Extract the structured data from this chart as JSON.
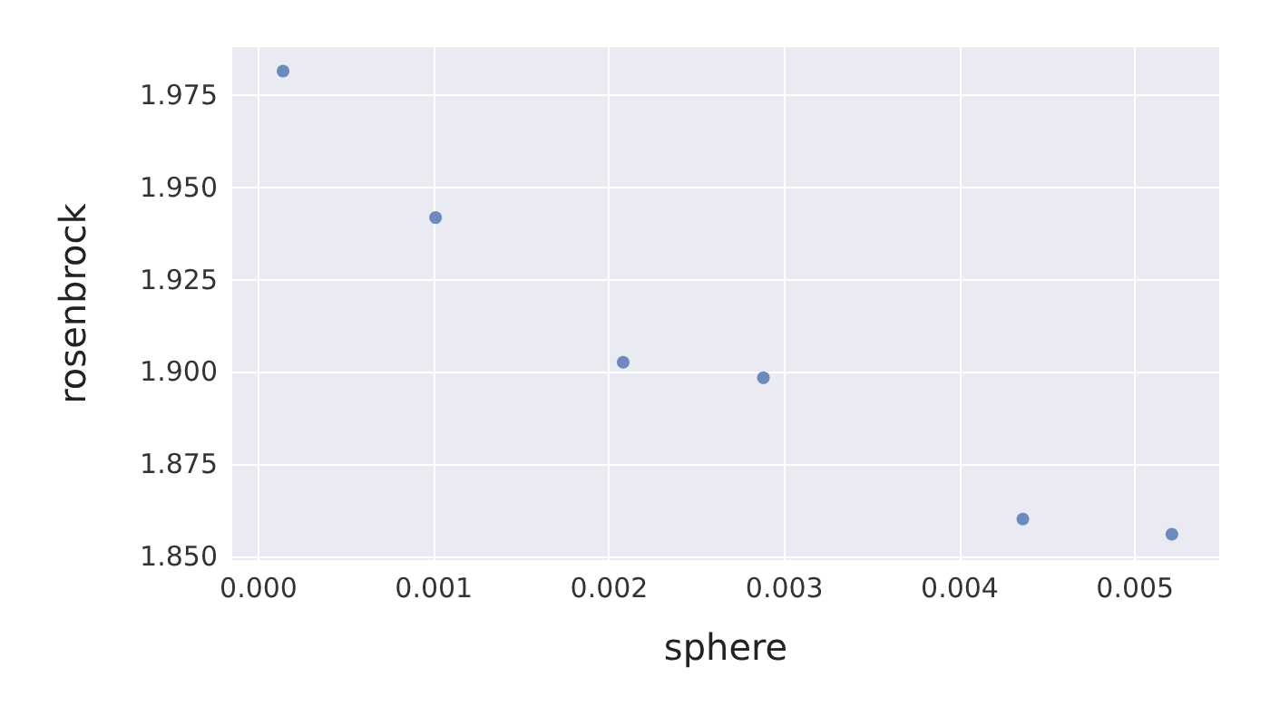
{
  "chart_data": {
    "type": "scatter",
    "xlabel": "sphere",
    "ylabel": "rosenbrock",
    "x": [
      0.00014,
      0.00101,
      0.00208,
      0.00288,
      0.00436,
      0.00521
    ],
    "series": [
      {
        "color": "#4c72b0",
        "values": [
          1.9815,
          1.9418,
          1.9026,
          1.8984,
          1.8601,
          1.856
        ]
      }
    ],
    "xlim": [
      -0.00015,
      0.00548
    ],
    "ylim": [
      1.849,
      1.988
    ],
    "xticks": [
      {
        "value": 0,
        "label": "0.000"
      },
      {
        "value": 0.001,
        "label": "0.001"
      },
      {
        "value": 0.002,
        "label": "0.002"
      },
      {
        "value": 0.003,
        "label": "0.003"
      },
      {
        "value": 0.004,
        "label": "0.004"
      },
      {
        "value": 0.005,
        "label": "0.005"
      }
    ],
    "yticks": [
      {
        "value": 1.85,
        "label": "1.850"
      },
      {
        "value": 1.875,
        "label": "1.875"
      },
      {
        "value": 1.9,
        "label": "1.900"
      },
      {
        "value": 1.925,
        "label": "1.925"
      },
      {
        "value": 1.95,
        "label": "1.950"
      },
      {
        "value": 1.975,
        "label": "1.975"
      }
    ],
    "grid": true,
    "marker": "circle"
  }
}
